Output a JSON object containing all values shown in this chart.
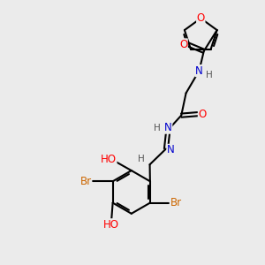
{
  "background_color": "#ebebeb",
  "bond_color": "#000000",
  "atom_colors": {
    "O": "#ff0000",
    "N": "#0000cc",
    "Br": "#cc6600",
    "C": "#000000",
    "H": "#555555"
  },
  "font_size": 8.5,
  "fig_width": 3.0,
  "fig_height": 3.0,
  "dpi": 100
}
